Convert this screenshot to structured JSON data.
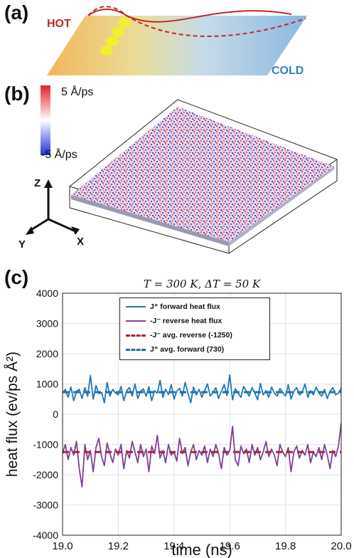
{
  "panels": {
    "a": {
      "label": "(a)",
      "hot_label": "HOT",
      "cold_label": "COLD",
      "colors": {
        "hot": "#c0262c",
        "cold": "#2f7fc1",
        "dots": "#f2ef2e",
        "wave": "#c0262c"
      }
    },
    "b": {
      "label": "(b)",
      "colorbar_max": "5 Å/ps",
      "colorbar_min": "-5 Å/ps",
      "axes": {
        "z": "Z",
        "y": "Y",
        "x": "X"
      },
      "colors": {
        "positive": "#e0222a",
        "negative": "#1f2fd6",
        "neutral": "#ffffff"
      }
    },
    "c": {
      "label": "(c)"
    }
  },
  "chart_data": {
    "type": "line",
    "title": "T = 300 K, ΔT = 50 K",
    "xlabel": "time (ns)",
    "ylabel": "heat flux (ev/ps Å²)",
    "xlim": [
      19.0,
      20.0
    ],
    "ylim": [
      -4000,
      4000
    ],
    "grid": true,
    "legend_position": "top-center",
    "xticks": [
      "19.0",
      "19.2",
      "19.4",
      "19.6",
      "19.8",
      "20.0"
    ],
    "yticks": [
      "4000",
      "3000",
      "2000",
      "1000",
      "0",
      "-1000",
      "-2000",
      "-3000",
      "-4000"
    ],
    "series": [
      {
        "name": "J⁺ forward heat flux",
        "style": "solid",
        "color": "#1f77b4",
        "x": [
          19.0,
          19.01,
          19.02,
          19.03,
          19.04,
          19.05,
          19.06,
          19.07,
          19.08,
          19.09,
          19.1,
          19.11,
          19.12,
          19.13,
          19.14,
          19.15,
          19.16,
          19.17,
          19.18,
          19.19,
          19.2,
          19.21,
          19.22,
          19.23,
          19.24,
          19.25,
          19.26,
          19.27,
          19.28,
          19.29,
          19.3,
          19.31,
          19.32,
          19.33,
          19.34,
          19.35,
          19.36,
          19.37,
          19.38,
          19.39,
          19.4,
          19.41,
          19.42,
          19.43,
          19.44,
          19.45,
          19.46,
          19.47,
          19.48,
          19.49,
          19.5,
          19.51,
          19.52,
          19.53,
          19.54,
          19.55,
          19.56,
          19.57,
          19.58,
          19.59,
          19.6,
          19.61,
          19.62,
          19.63,
          19.64,
          19.65,
          19.66,
          19.67,
          19.68,
          19.69,
          19.7,
          19.71,
          19.72,
          19.73,
          19.74,
          19.75,
          19.76,
          19.77,
          19.78,
          19.79,
          19.8,
          19.81,
          19.82,
          19.83,
          19.84,
          19.85,
          19.86,
          19.87,
          19.88,
          19.89,
          19.9,
          19.91,
          19.92,
          19.93,
          19.94,
          19.95,
          19.96,
          19.97,
          19.98,
          19.99,
          20.0
        ],
        "values": [
          700,
          820,
          560,
          900,
          450,
          760,
          820,
          520,
          880,
          600,
          1280,
          500,
          950,
          680,
          720,
          380,
          1050,
          600,
          820,
          700,
          640,
          920,
          450,
          780,
          880,
          600,
          1000,
          520,
          760,
          840,
          600,
          910,
          450,
          780,
          700,
          1120,
          560,
          820,
          650,
          980,
          500,
          760,
          860,
          600,
          1050,
          700,
          380,
          900,
          640,
          820,
          560,
          780,
          1000,
          600,
          720,
          880,
          520,
          760,
          980,
          620,
          1300,
          480,
          840,
          700,
          560,
          920,
          760,
          600,
          880,
          700,
          480,
          1020,
          640,
          780,
          560,
          900,
          700,
          600,
          850,
          720,
          600,
          980,
          500,
          760,
          880,
          640,
          720,
          1000,
          560,
          780,
          640,
          900,
          700,
          600,
          820,
          520,
          760,
          880,
          640,
          700,
          860
        ]
      },
      {
        "name": "-J⁻ reverse heat flux",
        "style": "solid",
        "color": "#7e3f98",
        "x": [
          19.0,
          19.01,
          19.02,
          19.03,
          19.04,
          19.05,
          19.06,
          19.07,
          19.08,
          19.09,
          19.1,
          19.11,
          19.12,
          19.13,
          19.14,
          19.15,
          19.16,
          19.17,
          19.18,
          19.19,
          19.2,
          19.21,
          19.22,
          19.23,
          19.24,
          19.25,
          19.26,
          19.27,
          19.28,
          19.29,
          19.3,
          19.31,
          19.32,
          19.33,
          19.34,
          19.35,
          19.36,
          19.37,
          19.38,
          19.39,
          19.4,
          19.41,
          19.42,
          19.43,
          19.44,
          19.45,
          19.46,
          19.47,
          19.48,
          19.49,
          19.5,
          19.51,
          19.52,
          19.53,
          19.54,
          19.55,
          19.56,
          19.57,
          19.58,
          19.59,
          19.6,
          19.61,
          19.62,
          19.63,
          19.64,
          19.65,
          19.66,
          19.67,
          19.68,
          19.69,
          19.7,
          19.71,
          19.72,
          19.73,
          19.74,
          19.75,
          19.76,
          19.77,
          19.78,
          19.79,
          19.8,
          19.81,
          19.82,
          19.83,
          19.84,
          19.85,
          19.86,
          19.87,
          19.88,
          19.89,
          19.9,
          19.91,
          19.92,
          19.93,
          19.94,
          19.95,
          19.96,
          19.97,
          19.98,
          19.99,
          20.0
        ],
        "values": [
          -1300,
          -1000,
          -1500,
          -1100,
          -1350,
          -900,
          -1800,
          -2400,
          -1000,
          -1500,
          -1200,
          -1900,
          -1100,
          -800,
          -1400,
          -1700,
          -950,
          -1300,
          -1600,
          -1150,
          -1350,
          -1000,
          -1800,
          -1200,
          -1450,
          -900,
          -1250,
          -1600,
          -1000,
          -1400,
          -1150,
          -1900,
          -1050,
          -1300,
          -700,
          -1450,
          -1200,
          -1600,
          -1000,
          -1350,
          -1250,
          -1550,
          -800,
          -1300,
          -1100,
          -1700,
          -1250,
          -1000,
          -1500,
          -1200,
          -1350,
          -1050,
          -1600,
          -1150,
          -1400,
          -1000,
          -1300,
          -1800,
          -1100,
          -1350,
          -1200,
          -400,
          -1500,
          -1700,
          -1050,
          -1300,
          -1150,
          -1600,
          -1000,
          -1350,
          -1100,
          -1500,
          -1250,
          -900,
          -1400,
          -1150,
          -1350,
          -1700,
          -1000,
          -1250,
          -1400,
          -1100,
          -1900,
          -1250,
          -1050,
          -1450,
          -1200,
          -1350,
          -1000,
          -1600,
          -1250,
          -1400,
          -1100,
          -1500,
          -1000,
          -1350,
          -1800,
          -1200,
          -1400,
          -1050,
          -300
        ]
      },
      {
        "name": "-J⁻ avg. reverse (-1250)",
        "style": "dashed",
        "color": "#a8233a",
        "x": [
          19.0,
          20.0
        ],
        "values": [
          -1250,
          -1250
        ]
      },
      {
        "name": "J⁺ avg. forward (730)",
        "style": "dashed",
        "color": "#1f6fb4",
        "x": [
          19.0,
          20.0
        ],
        "values": [
          730,
          730
        ]
      }
    ]
  }
}
